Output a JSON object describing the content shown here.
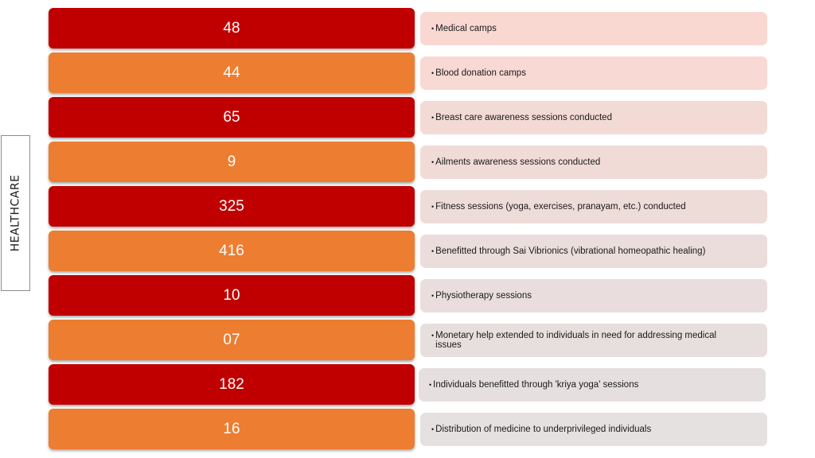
{
  "side_label": "HEALTHCARE",
  "colors": {
    "odd_box": "#c00000",
    "even_box": "#ed7d31"
  },
  "rows": [
    {
      "number": "48",
      "text": "Medical camps"
    },
    {
      "number": "44",
      "text": "Blood donation camps"
    },
    {
      "number": "65",
      "text": "Breast care awareness sessions conducted"
    },
    {
      "number": "9",
      "text": "Ailments awareness sessions conducted"
    },
    {
      "number": "325",
      "text": "Fitness sessions (yoga, exercises, pranayam, etc.) conducted"
    },
    {
      "number": "416",
      "text": "Benefitted through Sai Vibrionics (vibrational homeopathic healing)"
    },
    {
      "number": "10",
      "text": "Physiotherapy sessions"
    },
    {
      "number": "07",
      "text": "Monetary help extended to individuals in need for addressing medical issues"
    },
    {
      "number": "182",
      "text": "Individuals benefitted through 'kriya yoga' sessions"
    },
    {
      "number": "16",
      "text": "Distribution of medicine to underprivileged individuals"
    }
  ]
}
